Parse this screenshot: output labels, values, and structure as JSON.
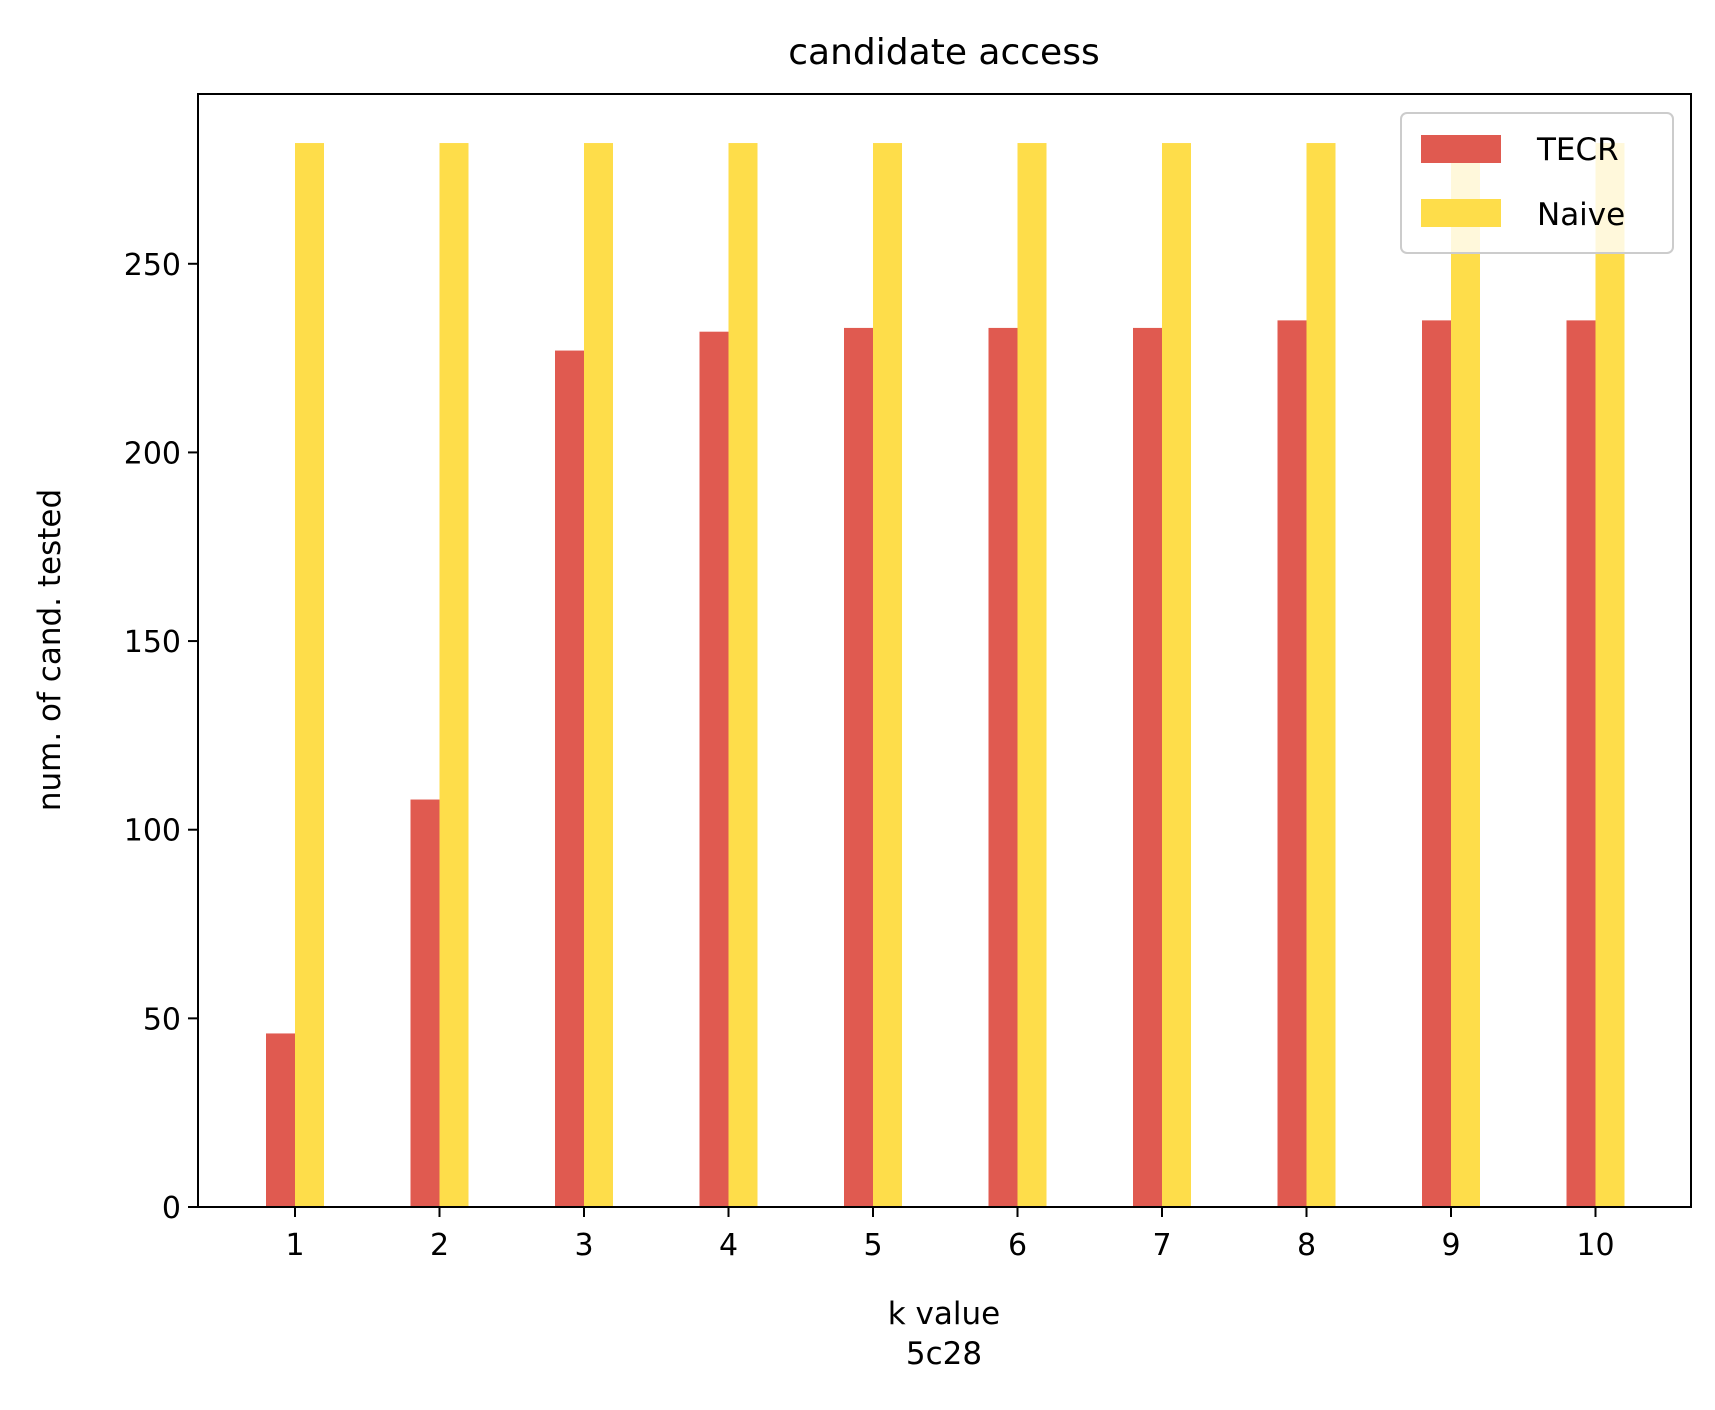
{
  "chart_data": {
    "type": "bar",
    "title": "candidate access",
    "xlabel": "k value",
    "xlabel_sub": "5c28",
    "ylabel": "num. of cand. tested",
    "categories": [
      "1",
      "2",
      "3",
      "4",
      "5",
      "6",
      "7",
      "8",
      "9",
      "10"
    ],
    "series": [
      {
        "name": "TECR",
        "color": "#e05a50",
        "values": [
          46,
          108,
          227,
          232,
          233,
          233,
          233,
          235,
          235,
          235
        ]
      },
      {
        "name": "Naive",
        "color": "#fedd4a",
        "values": [
          282,
          282,
          282,
          282,
          282,
          282,
          282,
          282,
          282,
          282
        ]
      }
    ],
    "ylim": [
      0,
      295
    ],
    "yticks": [
      0,
      50,
      100,
      150,
      200,
      250
    ],
    "grid": false,
    "legend_position": "upper right"
  }
}
